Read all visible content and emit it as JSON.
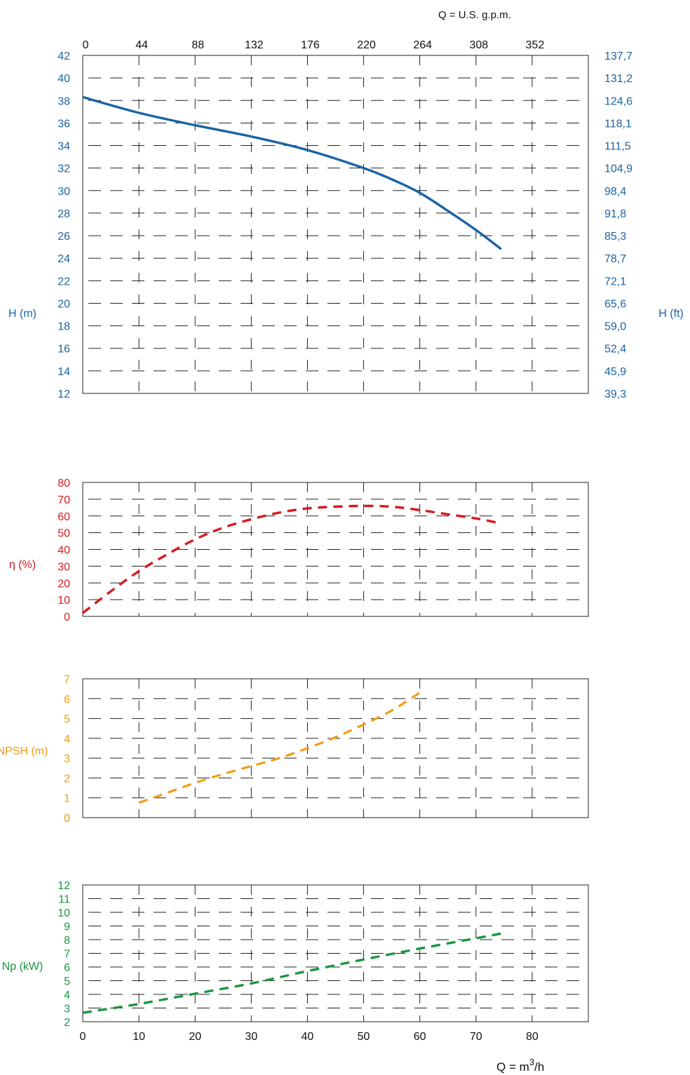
{
  "colors": {
    "head": "#1a63a6",
    "efficiency": "#d7191c",
    "npsh": "#f39c12",
    "power": "#1a9641",
    "grid": "#222222",
    "text": "#111111"
  },
  "top_axis": {
    "label": "Q = U.S. g.p.m.",
    "ticks": [
      "0",
      "44",
      "88",
      "132",
      "176",
      "220",
      "264",
      "308",
      "352"
    ]
  },
  "bottom_axis": {
    "label_prefix": "Q = m",
    "label_sup": "3",
    "label_suffix": "/h",
    "ticks": [
      "0",
      "10",
      "20",
      "30",
      "40",
      "50",
      "60",
      "70",
      "80"
    ]
  },
  "chart_data": [
    {
      "type": "line",
      "ylabel": "H (m)",
      "ylabel_right": "H (ft)",
      "xlim": [
        0,
        90
      ],
      "ylim": [
        12,
        42
      ],
      "y_ticks": [
        "12",
        "14",
        "16",
        "18",
        "20",
        "22",
        "24",
        "26",
        "28",
        "30",
        "32",
        "34",
        "36",
        "38",
        "40",
        "42"
      ],
      "y_ticks_right": [
        "39,3",
        "45,9",
        "52,4",
        "59,0",
        "65,6",
        "72,1",
        "78,7",
        "85,3",
        "91,8",
        "98,4",
        "104,9",
        "111,5",
        "118,1",
        "124,6",
        "131,2",
        "137,7"
      ],
      "grid": true,
      "series": [
        {
          "style": "solid",
          "x": [
            0,
            10,
            20,
            30,
            40,
            50,
            55,
            60,
            65,
            70,
            74.5
          ],
          "y": [
            38.3,
            36.9,
            35.8,
            34.8,
            33.6,
            32,
            31,
            29.8,
            28.2,
            26.5,
            24.8
          ]
        }
      ]
    },
    {
      "type": "line",
      "ylabel": "η (%)",
      "xlim": [
        0,
        90
      ],
      "ylim": [
        0,
        80
      ],
      "y_ticks": [
        "0",
        "10",
        "20",
        "30",
        "40",
        "50",
        "60",
        "70",
        "80"
      ],
      "grid": true,
      "series": [
        {
          "style": "dashed",
          "x": [
            0,
            5,
            10,
            15,
            20,
            25,
            30,
            35,
            40,
            45,
            50,
            55,
            60,
            65,
            70,
            74.5
          ],
          "y": [
            2,
            15,
            27,
            37,
            46,
            53,
            58,
            62,
            64.5,
            65.5,
            66,
            65.5,
            63.5,
            61,
            58.5,
            55.5
          ]
        }
      ]
    },
    {
      "type": "line",
      "ylabel": "NPSH (m)",
      "xlim": [
        0,
        90
      ],
      "ylim": [
        0,
        7
      ],
      "y_ticks": [
        "0",
        "1",
        "2",
        "3",
        "4",
        "5",
        "6",
        "7"
      ],
      "grid": true,
      "series": [
        {
          "style": "dashed",
          "x": [
            10,
            15,
            20,
            25,
            30,
            35,
            40,
            45,
            50,
            55,
            60
          ],
          "y": [
            0.75,
            1.25,
            1.75,
            2.2,
            2.6,
            3.0,
            3.5,
            4.05,
            4.7,
            5.4,
            6.3
          ]
        }
      ]
    },
    {
      "type": "line",
      "ylabel": "Np (kW)",
      "xlim": [
        0,
        90
      ],
      "ylim": [
        2,
        12
      ],
      "y_ticks": [
        "2",
        "3",
        "4",
        "5",
        "6",
        "7",
        "8",
        "9",
        "10",
        "11",
        "12"
      ],
      "grid": true,
      "series": [
        {
          "style": "dashed",
          "x": [
            0,
            10,
            20,
            30,
            40,
            50,
            60,
            70,
            74.5
          ],
          "y": [
            2.65,
            3.3,
            4.05,
            4.8,
            5.7,
            6.55,
            7.35,
            8.1,
            8.45
          ]
        }
      ]
    }
  ]
}
